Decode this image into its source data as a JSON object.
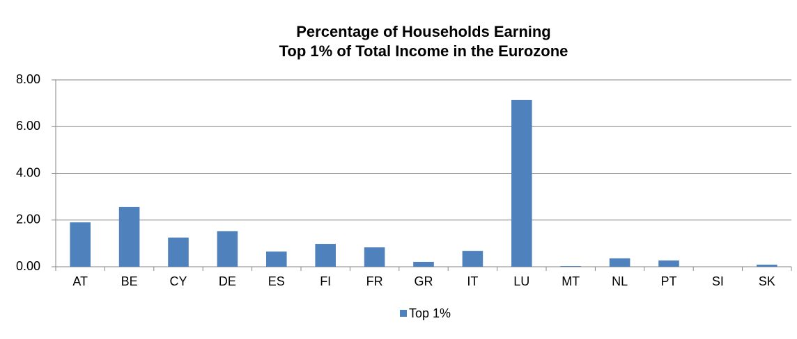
{
  "chart_data": {
    "type": "bar",
    "title": [
      "Percentage of Households Earning",
      "Top 1% of Total Income in the Eurozone"
    ],
    "categories": [
      "AT",
      "BE",
      "CY",
      "DE",
      "ES",
      "FI",
      "FR",
      "GR",
      "IT",
      "LU",
      "MT",
      "NL",
      "PT",
      "SI",
      "SK"
    ],
    "series": [
      {
        "name": "Top 1%",
        "color": "#4f81bd",
        "values": [
          1.9,
          2.56,
          1.25,
          1.52,
          0.65,
          0.98,
          0.83,
          0.21,
          0.68,
          7.14,
          0.03,
          0.36,
          0.27,
          0,
          0.09
        ]
      }
    ],
    "ylim": [
      0,
      8
    ],
    "yticks": [
      {
        "value": 0,
        "label": "0.00"
      },
      {
        "value": 2,
        "label": "2.00"
      },
      {
        "value": 4,
        "label": "4.00"
      },
      {
        "value": 6,
        "label": "6.00"
      },
      {
        "value": 8,
        "label": "8.00"
      }
    ],
    "grid": true,
    "legend": "bottom"
  }
}
